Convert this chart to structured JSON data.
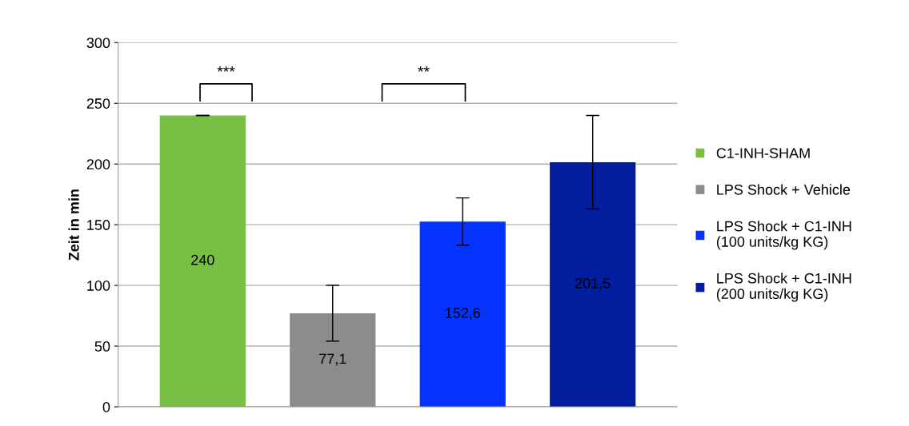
{
  "chart_data": {
    "type": "bar",
    "ylabel": "Zeit in min",
    "categories": [
      null,
      null,
      null,
      null
    ],
    "series": [
      {
        "name": "C1-INH-SHAM",
        "color": "#77c043",
        "values": [
          240,
          null,
          null,
          null
        ],
        "errors": [
          0,
          null,
          null,
          null
        ],
        "value_labels": [
          "240",
          null,
          null,
          null
        ]
      },
      {
        "name": "LPS Shock + Vehicle",
        "color": "#8c8c8c",
        "values": [
          null,
          77.1,
          null,
          null
        ],
        "errors": [
          null,
          23,
          null,
          null
        ],
        "value_labels": [
          null,
          "77,1",
          null,
          null
        ]
      },
      {
        "name": "LPS Shock + C1-INH\n(100 units/kg KG)",
        "color": "#0433ff",
        "values": [
          null,
          null,
          152.6,
          null
        ],
        "errors": [
          null,
          null,
          19.5,
          null
        ],
        "value_labels": [
          null,
          null,
          "152,6",
          null
        ]
      },
      {
        "name": "LPS Shock + C1-INH\n(200 units/kg KG)",
        "color": "#021d9e",
        "values": [
          null,
          null,
          null,
          201.5
        ],
        "errors": [
          null,
          null,
          null,
          38.5
        ],
        "value_labels": [
          null,
          null,
          null,
          "201,5"
        ]
      }
    ],
    "ylim": [
      0,
      300
    ],
    "yticks": [
      0,
      50,
      100,
      150,
      200,
      250,
      300
    ],
    "grid": "y",
    "legend": "right",
    "annotations": [
      "***",
      "**"
    ]
  }
}
